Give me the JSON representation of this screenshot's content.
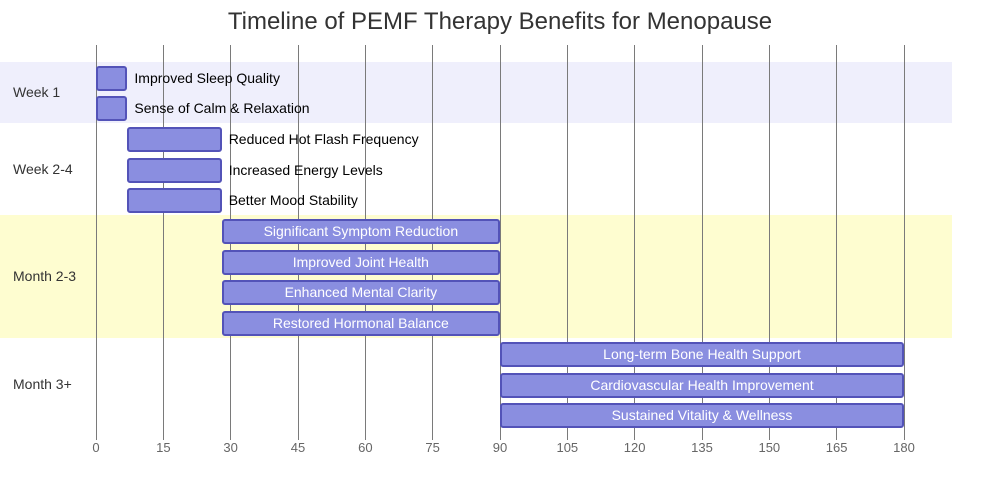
{
  "title": "Timeline of PEMF Therapy Benefits for Menopause",
  "colors": {
    "band_week1": "#efeffc",
    "band_week2_4": "#ffffff",
    "band_month2_3": "#fefdd0",
    "band_month3plus": "#ffffff",
    "bar_fill": "#8a8ee0",
    "bar_border": "#5353b8"
  },
  "chart_data": {
    "type": "gantt",
    "title": "Timeline of PEMF Therapy Benefits for Menopause",
    "xlabel": "",
    "ylabel": "",
    "xlim": [
      0,
      180
    ],
    "x_ticks": [
      0,
      15,
      30,
      45,
      60,
      75,
      90,
      105,
      120,
      135,
      150,
      165,
      180
    ],
    "grid": true,
    "sections": [
      {
        "name": "Week 1",
        "tasks": [
          {
            "label": "Improved Sleep Quality",
            "start": 0,
            "end": 7
          },
          {
            "label": "Sense of Calm & Relaxation",
            "start": 0,
            "end": 7
          }
        ]
      },
      {
        "name": "Week 2-4",
        "tasks": [
          {
            "label": "Reduced Hot Flash Frequency",
            "start": 7,
            "end": 28
          },
          {
            "label": "Increased Energy Levels",
            "start": 7,
            "end": 28
          },
          {
            "label": "Better Mood Stability",
            "start": 7,
            "end": 28
          }
        ]
      },
      {
        "name": "Month 2-3",
        "tasks": [
          {
            "label": "Significant Symptom Reduction",
            "start": 28,
            "end": 90
          },
          {
            "label": "Improved Joint Health",
            "start": 28,
            "end": 90
          },
          {
            "label": "Enhanced Mental Clarity",
            "start": 28,
            "end": 90
          },
          {
            "label": "Restored Hormonal Balance",
            "start": 28,
            "end": 90
          }
        ]
      },
      {
        "name": "Month 3+",
        "tasks": [
          {
            "label": "Long-term Bone Health Support",
            "start": 90,
            "end": 180
          },
          {
            "label": "Cardiovascular Health Improvement",
            "start": 90,
            "end": 180
          },
          {
            "label": "Sustained Vitality & Wellness",
            "start": 90,
            "end": 180
          }
        ]
      }
    ]
  }
}
